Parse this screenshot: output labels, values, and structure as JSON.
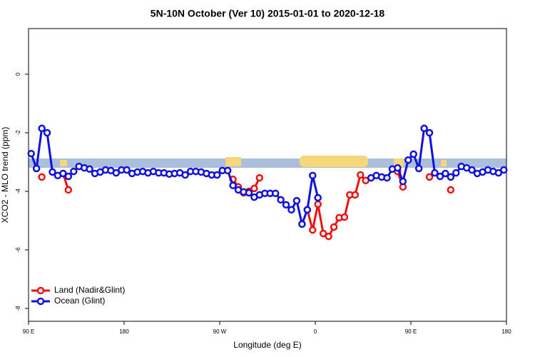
{
  "chart_data": {
    "type": "line",
    "title": "5N-10N October (Ver 10)   2015-01-01 to 2020-12-18",
    "xlabel": "Longitude (deg E)",
    "ylabel": "XCO2 - MLO trend (ppm)",
    "x": [
      92.5,
      97.5,
      102.5,
      107.5,
      112.5,
      117.5,
      122.5,
      127.5,
      132.5,
      137.5,
      142.5,
      147.5,
      152.5,
      157.5,
      162.5,
      167.5,
      172.5,
      177.5,
      182.5,
      187.5,
      192.5,
      197.5,
      202.5,
      207.5,
      212.5,
      217.5,
      222.5,
      227.5,
      232.5,
      237.5,
      242.5,
      247.5,
      252.5,
      257.5,
      262.5,
      267.5,
      272.5,
      277.5,
      282.5,
      287.5,
      292.5,
      297.5,
      302.5,
      307.5,
      312.5,
      317.5,
      322.5,
      327.5,
      332.5,
      337.5,
      342.5,
      347.5,
      352.5,
      357.5,
      362.5,
      367.5,
      372.5,
      377.5,
      382.5,
      387.5,
      392.5,
      397.5,
      402.5,
      407.5,
      412.5,
      417.5,
      422.5,
      427.5,
      432.5,
      437.5,
      442.5,
      447.5,
      452.5,
      457.5,
      462.5,
      467.5,
      472.5,
      477.5,
      482.5,
      487.5,
      492.5,
      497.5,
      502.5,
      507.5,
      512.5,
      517.5,
      522.5,
      527.5,
      532.5,
      537.5
    ],
    "series": [
      {
        "name": "Land (Nadir&Glint)",
        "color": "#ee1111",
        "values": [
          null,
          null,
          -3.51,
          null,
          null,
          null,
          -3.39,
          -3.95,
          null,
          null,
          null,
          null,
          null,
          null,
          null,
          null,
          null,
          null,
          null,
          null,
          null,
          null,
          null,
          null,
          null,
          null,
          null,
          null,
          null,
          null,
          null,
          null,
          null,
          null,
          null,
          null,
          null,
          null,
          -3.59,
          -3.85,
          -4.05,
          -4.0,
          -3.9,
          -3.54,
          null,
          null,
          null,
          null,
          null,
          null,
          null,
          null,
          -4.63,
          -5.32,
          -4.44,
          -5.44,
          -5.54,
          -5.22,
          -4.9,
          -4.88,
          -4.12,
          -4.12,
          -3.44,
          -3.63,
          null,
          null,
          null,
          null,
          null,
          -3.32,
          -3.85,
          null,
          null,
          null,
          null,
          -3.51,
          null,
          null,
          null,
          -3.95,
          null,
          null,
          null,
          null,
          null,
          null,
          null,
          null,
          null,
          null
        ]
      },
      {
        "name": "Ocean (Glint)",
        "color": "#1111dd",
        "values": [
          -2.71,
          -3.22,
          -1.85,
          -2.0,
          -3.34,
          -3.46,
          -3.39,
          -3.49,
          -3.32,
          -3.15,
          -3.2,
          -3.24,
          -3.39,
          -3.34,
          -3.27,
          -3.29,
          -3.37,
          -3.27,
          -3.27,
          -3.39,
          -3.34,
          -3.32,
          -3.37,
          -3.32,
          -3.37,
          -3.37,
          -3.41,
          -3.39,
          -3.37,
          -3.44,
          -3.32,
          -3.32,
          -3.34,
          -3.39,
          -3.44,
          -3.44,
          -3.29,
          -3.29,
          -3.8,
          -3.95,
          -4.02,
          -4.05,
          -4.2,
          -4.12,
          -4.07,
          -4.07,
          -4.07,
          -4.29,
          -4.46,
          -4.63,
          -4.32,
          -5.12,
          -4.63,
          -3.46,
          -4.22,
          null,
          null,
          null,
          null,
          null,
          null,
          null,
          null,
          null,
          -3.54,
          -3.46,
          -3.51,
          -3.54,
          -3.24,
          -3.2,
          -3.66,
          -2.93,
          -2.73,
          -3.22,
          -1.85,
          -2.0,
          -3.37,
          -3.49,
          -3.39,
          -3.51,
          -3.37,
          -3.15,
          -3.2,
          -3.27,
          -3.39,
          -3.34,
          -3.27,
          -3.32,
          -3.37,
          -3.27
        ]
      }
    ],
    "xlim": [
      90,
      540
    ],
    "xticks": [
      {
        "value": 90,
        "label": "90 E"
      },
      180,
      {
        "value": 270,
        "label": "90 W"
      },
      {
        "value": 360,
        "label": "0"
      },
      {
        "value": 450,
        "label": "90 E"
      },
      {
        "value": 540,
        "label": "180"
      }
    ],
    "ylim": [
      -8.44,
      1.56
    ],
    "yticks": [
      0,
      -2,
      -4,
      -6,
      -8
    ],
    "legend": "bottom-left"
  }
}
